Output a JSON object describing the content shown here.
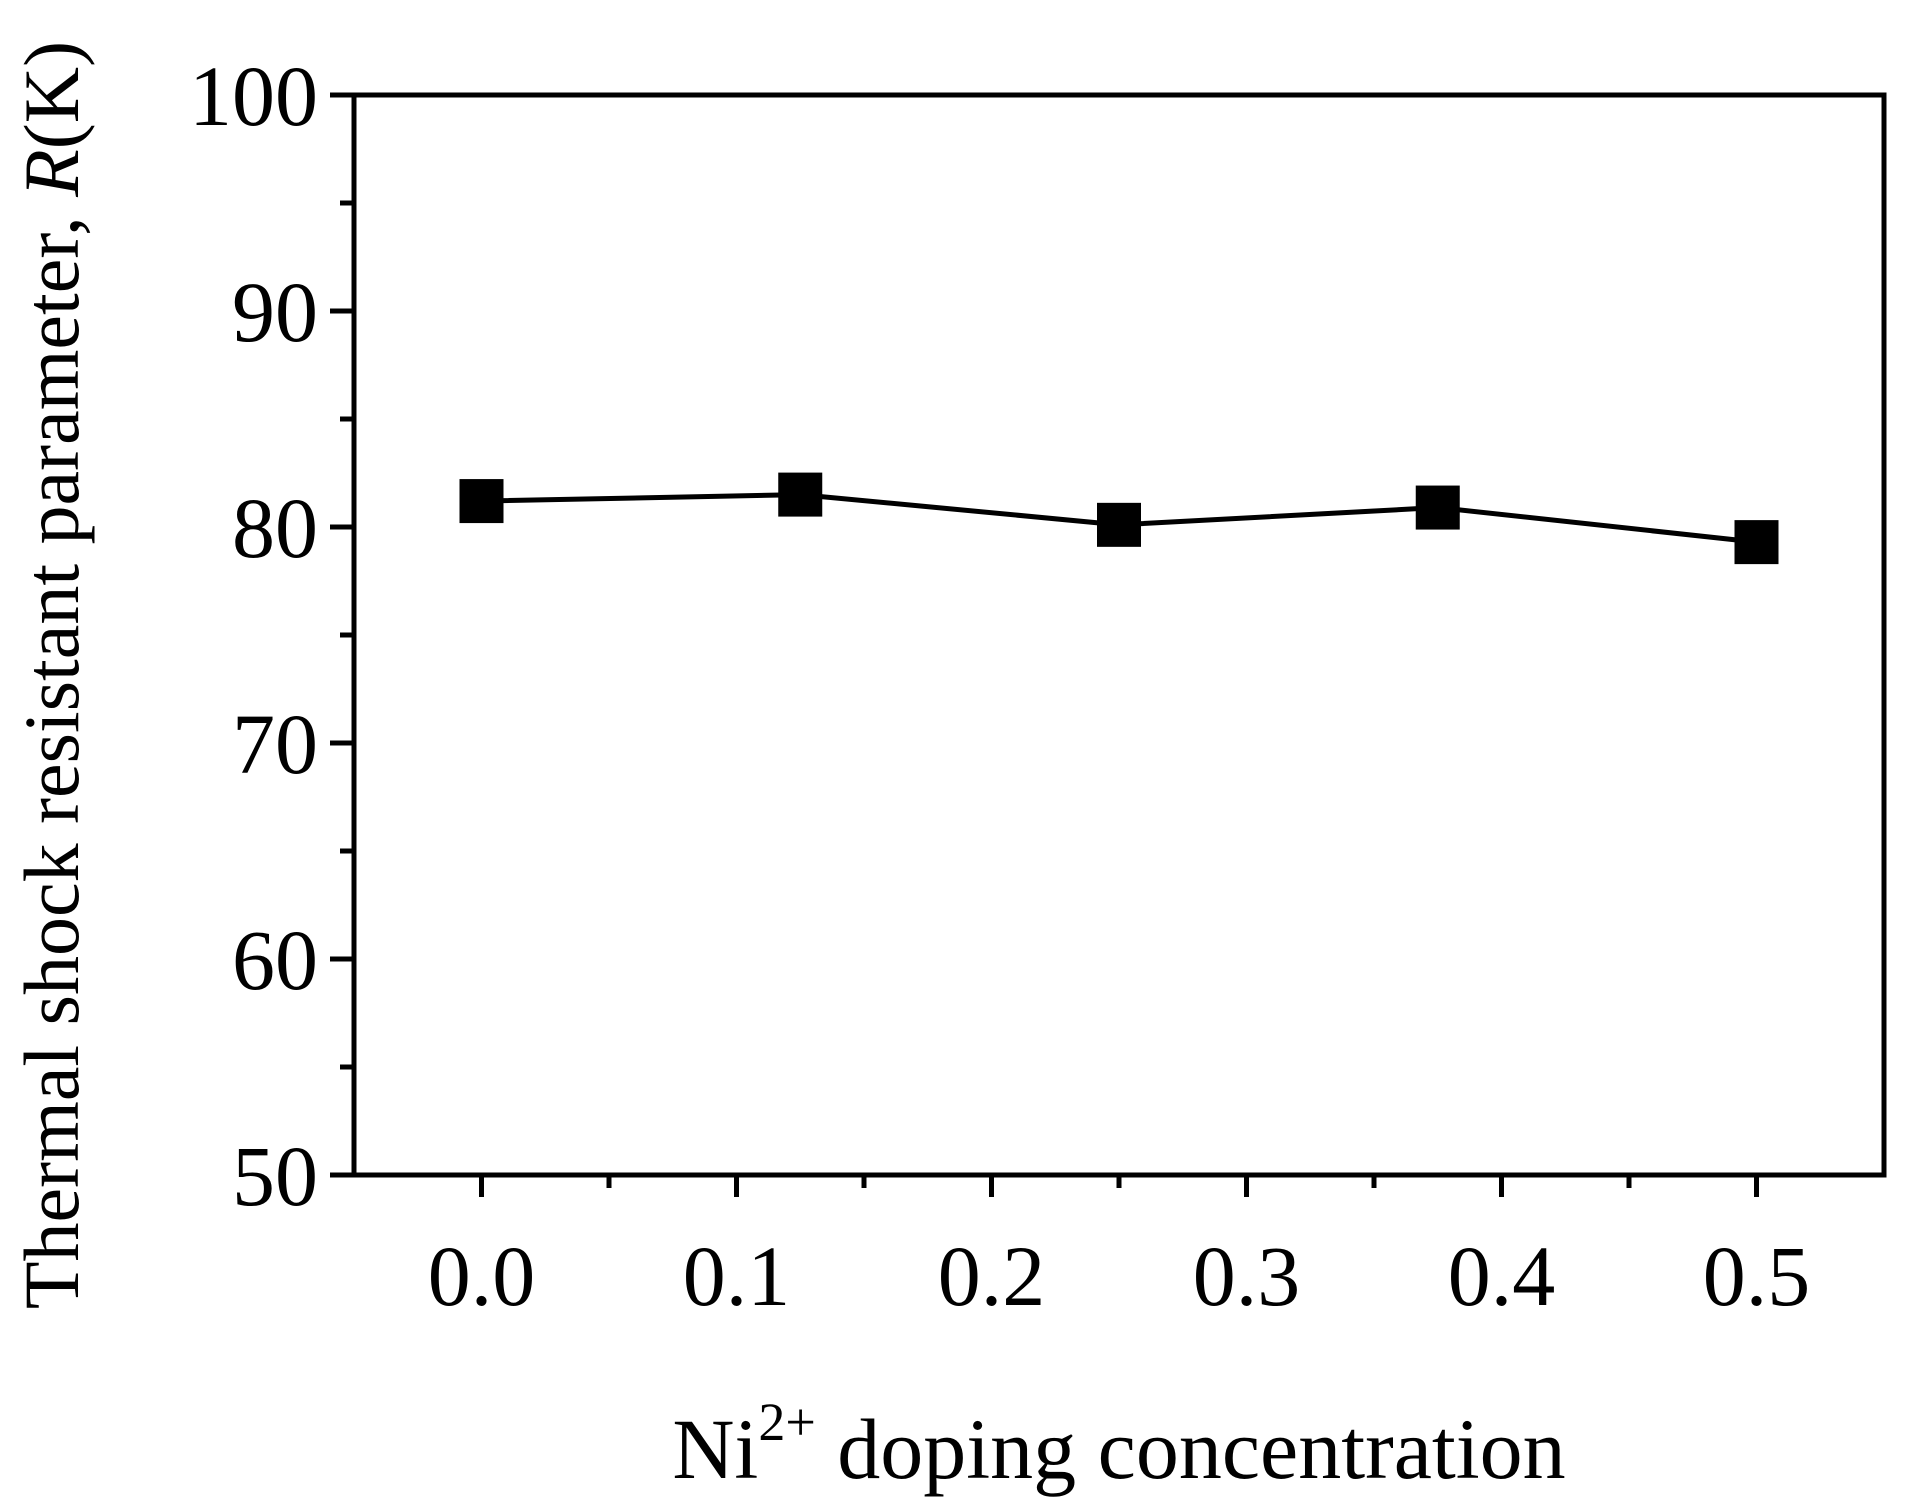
{
  "chart_data": {
    "type": "line",
    "title": "",
    "xlabel": {
      "base": "Ni",
      "superscript": "2+",
      "rest": " doping concentration"
    },
    "ylabel": {
      "prefix": "Thermal shock resistant parameter, ",
      "italic": "R",
      "suffix": "(K)"
    },
    "xlim": [
      -0.05,
      0.55
    ],
    "ylim": [
      50,
      100
    ],
    "x_ticks": [
      0.0,
      0.1,
      0.2,
      0.3,
      0.4,
      0.5
    ],
    "x_tick_labels": [
      "0.0",
      "0.1",
      "0.2",
      "0.3",
      "0.4",
      "0.5"
    ],
    "y_ticks": [
      50,
      60,
      70,
      80,
      90,
      100
    ],
    "y_tick_labels": [
      "50",
      "60",
      "70",
      "80",
      "90",
      "100"
    ],
    "grid": false,
    "marker": "square",
    "color": "#000000",
    "series": [
      {
        "x": [
          0.0,
          0.125,
          0.25,
          0.375,
          0.5
        ],
        "values": [
          81.2,
          81.5,
          80.1,
          80.9,
          79.3
        ]
      }
    ]
  }
}
